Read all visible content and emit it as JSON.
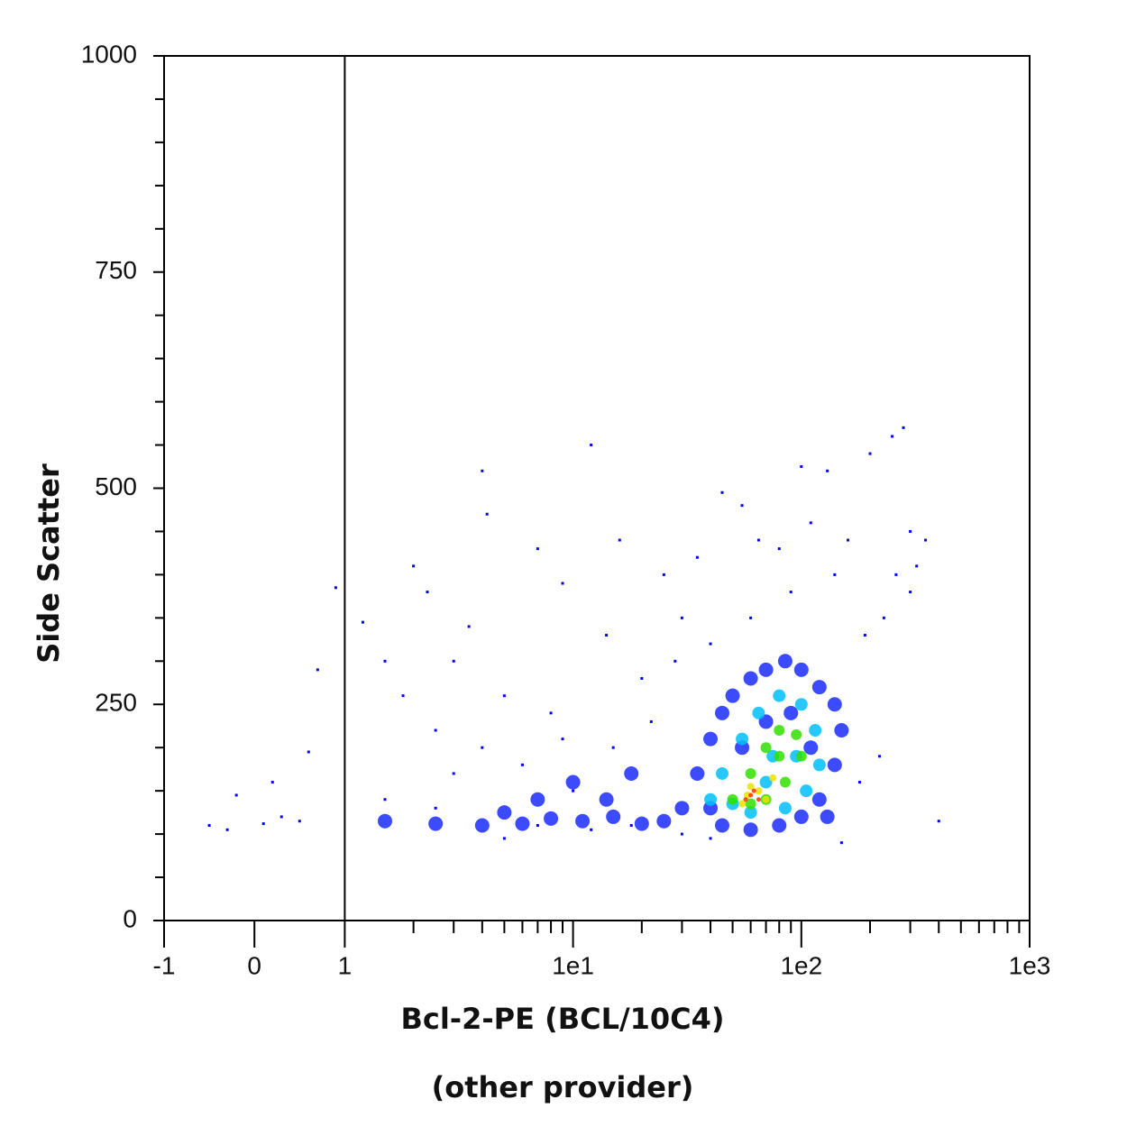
{
  "chart_data": {
    "type": "scatter",
    "ylabel": "Side Scatter",
    "xlabel": [
      "Bcl-2-PE (BCL/10C4)",
      "(other provider)"
    ],
    "xscale": "biexponential",
    "xlim": [
      -1,
      1000
    ],
    "ylim": [
      0,
      1000
    ],
    "xticks": [
      -1,
      0,
      1,
      {
        "value": 10,
        "label": "1e1"
      },
      {
        "value": 100,
        "label": "1e2"
      },
      {
        "value": 1000,
        "label": "1e3"
      }
    ],
    "xminorticks": [
      2,
      3,
      4,
      5,
      6,
      7,
      8,
      9,
      20,
      30,
      40,
      50,
      60,
      70,
      80,
      90,
      200,
      300,
      400,
      500,
      600,
      700,
      800,
      900
    ],
    "yticks": [
      0,
      250,
      500,
      750,
      1000
    ],
    "yminorticks": [
      50,
      100,
      150,
      200,
      300,
      350,
      400,
      450,
      550,
      600,
      650,
      700,
      800,
      850,
      900,
      950
    ],
    "gate_x": 1,
    "series": [
      {
        "color": "#1a2cff",
        "size": 16,
        "x": [
          1.5,
          2.5,
          4,
          6,
          8,
          11,
          15,
          20,
          25,
          7,
          10,
          14,
          18,
          5,
          30,
          35,
          40,
          45,
          50,
          60,
          70,
          85,
          100,
          120,
          140,
          150,
          140,
          120,
          100,
          80,
          60,
          45,
          130,
          40,
          55,
          90,
          70,
          110
        ],
        "values": [
          115,
          112,
          110,
          112,
          118,
          115,
          120,
          112,
          115,
          140,
          160,
          140,
          170,
          125,
          130,
          170,
          210,
          240,
          260,
          280,
          290,
          300,
          290,
          270,
          250,
          220,
          180,
          140,
          120,
          110,
          105,
          110,
          120,
          130,
          200,
          240,
          230,
          200
        ]
      },
      {
        "color": "#0000ff",
        "size": 3,
        "x": [
          -0.5,
          -0.3,
          -0.2,
          0.1,
          0.2,
          0.3,
          0.5,
          0.7,
          0.6,
          0.9,
          1.2,
          1.5,
          1.8,
          2,
          2.3,
          2.5,
          3,
          3.5,
          4,
          4.2,
          5,
          6,
          7,
          8,
          9,
          12,
          14,
          16,
          20,
          25,
          30,
          35,
          45,
          55,
          65,
          80,
          100,
          110,
          130,
          160,
          200,
          250,
          280,
          300,
          320,
          350,
          400,
          220,
          180,
          150,
          3,
          4,
          10,
          15,
          22,
          2.5,
          1.5,
          7,
          12,
          18,
          30,
          40,
          5,
          9,
          28,
          40,
          60,
          90,
          140,
          260,
          230,
          190,
          300
        ],
        "values": [
          110,
          105,
          145,
          112,
          160,
          120,
          115,
          290,
          195,
          385,
          345,
          300,
          260,
          410,
          380,
          220,
          300,
          340,
          520,
          470,
          260,
          180,
          430,
          240,
          390,
          550,
          330,
          440,
          280,
          400,
          350,
          420,
          495,
          480,
          440,
          430,
          525,
          460,
          520,
          440,
          540,
          560,
          570,
          450,
          410,
          440,
          115,
          190,
          160,
          90,
          170,
          200,
          150,
          200,
          230,
          130,
          140,
          110,
          105,
          110,
          100,
          95,
          95,
          210,
          300,
          320,
          350,
          380,
          400,
          400,
          350,
          330,
          380
        ]
      },
      {
        "color": "#00c0ff",
        "size": 14,
        "x": [
          40,
          45,
          55,
          65,
          80,
          100,
          115,
          120,
          105,
          85,
          60,
          50,
          75,
          95,
          70
        ],
        "values": [
          140,
          170,
          210,
          240,
          260,
          250,
          220,
          180,
          150,
          130,
          125,
          135,
          190,
          190,
          160
        ]
      },
      {
        "color": "#30e000",
        "size": 12,
        "x": [
          50,
          60,
          70,
          80,
          95,
          100,
          85,
          70,
          60,
          80
        ],
        "values": [
          140,
          170,
          200,
          220,
          215,
          190,
          160,
          140,
          135,
          190
        ]
      },
      {
        "color": "#f0e000",
        "size": 8,
        "x": [
          55,
          65,
          75,
          60,
          70,
          58
        ],
        "values": [
          135,
          150,
          165,
          155,
          140,
          145
        ]
      },
      {
        "color": "#ff3000",
        "size": 5,
        "x": [
          60,
          65,
          62,
          57
        ],
        "values": [
          145,
          140,
          150,
          140
        ]
      }
    ]
  }
}
